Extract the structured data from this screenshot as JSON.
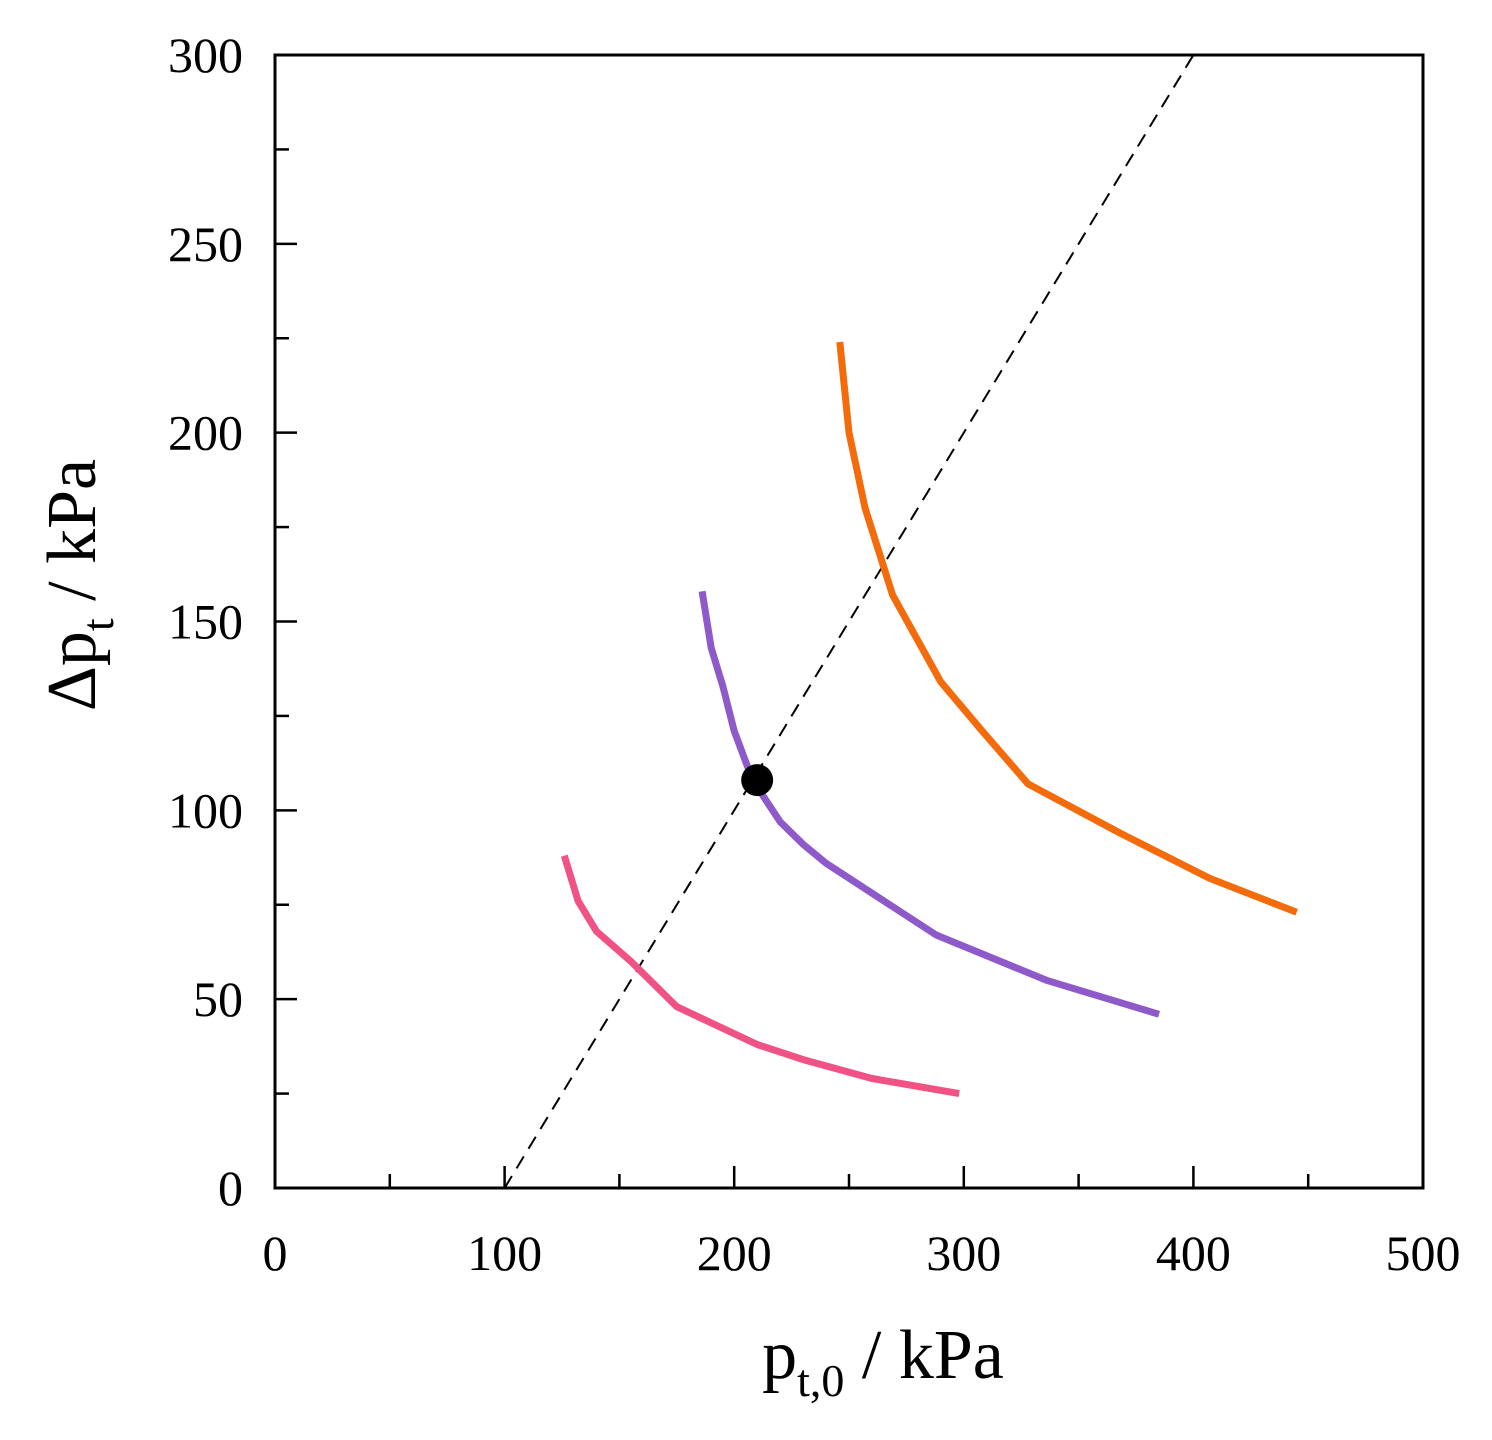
{
  "chart_data": {
    "type": "line",
    "title": "",
    "xlabel": {
      "main": "p",
      "sub": "t,0",
      "rest": " / kPa"
    },
    "ylabel": {
      "main": "Δp",
      "sub": "t",
      "rest": " / kPa"
    },
    "xlim": [
      0,
      500
    ],
    "ylim": [
      0,
      300
    ],
    "x_ticks": [
      0,
      100,
      200,
      300,
      400,
      500
    ],
    "y_ticks": [
      0,
      50,
      100,
      150,
      200,
      250,
      300
    ],
    "x_minor_ticks": [
      50,
      150,
      250,
      350,
      450
    ],
    "y_minor_ticks": [
      25,
      75,
      125,
      175,
      225,
      275
    ],
    "grid": false,
    "series": [
      {
        "name": "pink",
        "color": "#f05383",
        "x": [
          126,
          132,
          140,
          155,
          175,
          210,
          230,
          260,
          298
        ],
        "y": [
          88,
          76,
          68,
          60,
          48,
          38,
          34,
          29,
          25
        ]
      },
      {
        "name": "purple",
        "color": "#8e59c9",
        "x": [
          186,
          190,
          195,
          200,
          208,
          220,
          230,
          240,
          288,
          336,
          385
        ],
        "y": [
          158,
          143,
          133,
          121,
          108,
          97,
          91,
          86,
          67,
          55,
          46
        ]
      },
      {
        "name": "orange",
        "color": "#f36b0b",
        "x": [
          246,
          250,
          257,
          269,
          290,
          308,
          328,
          368,
          407,
          445
        ],
        "y": [
          224,
          200,
          180,
          157,
          134,
          121,
          107,
          94,
          82,
          73
        ]
      }
    ],
    "reference_line": {
      "name": "dashed-line",
      "color": "#000000",
      "x": [
        100,
        400
      ],
      "y": [
        0,
        300
      ]
    },
    "marker": {
      "name": "operating-point",
      "color": "#000000",
      "x": 210,
      "y": 108
    }
  }
}
